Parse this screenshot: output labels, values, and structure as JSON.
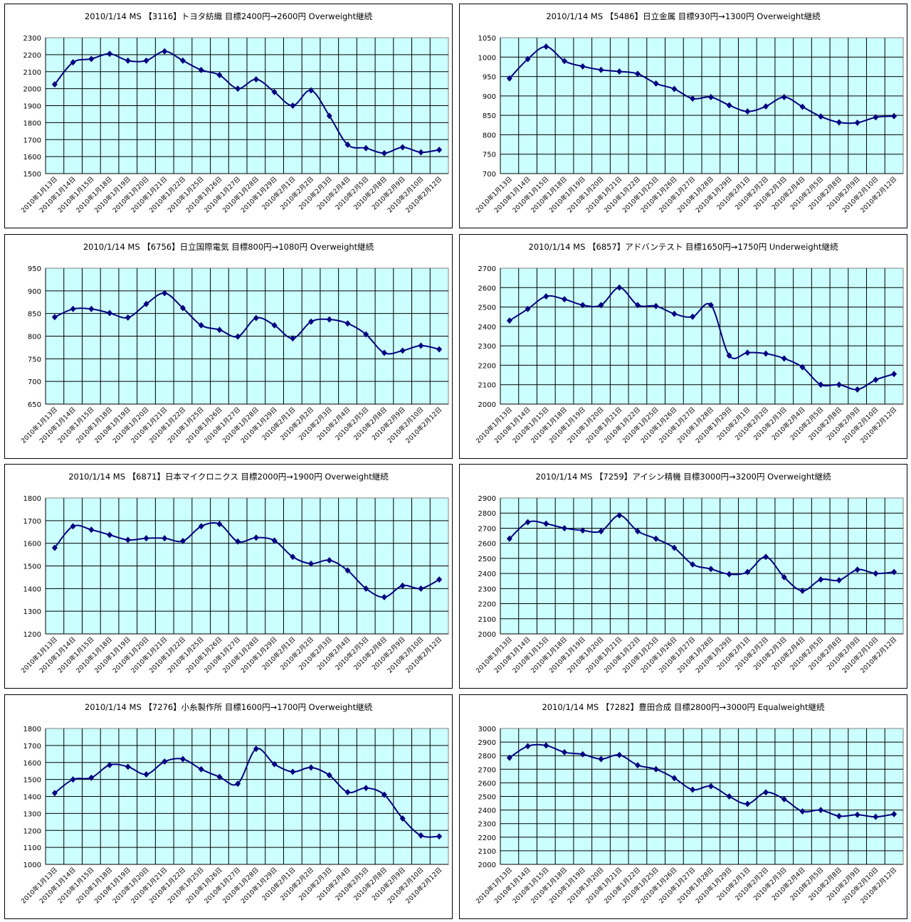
{
  "chart_data": [
    {
      "type": "line",
      "title": "2010/1/14 MS 【3116】トヨタ紡織 目標2400円→2600円 Overweight継続",
      "ylim": [
        1500,
        2300
      ],
      "ystep": 100,
      "values": [
        2025,
        2155,
        2175,
        2205,
        2165,
        2165,
        2220,
        2165,
        2110,
        2080,
        2000,
        2055,
        1980,
        1900,
        1990,
        1840,
        1670,
        1650,
        1620,
        1655,
        1625,
        1640
      ]
    },
    {
      "type": "line",
      "title": "2010/1/14 MS 【5486】日立金属 目標930円→1300円 Overweight継続",
      "ylim": [
        700,
        1050
      ],
      "ystep": 50,
      "values": [
        945,
        995,
        1027,
        990,
        976,
        967,
        963,
        957,
        932,
        918,
        893,
        897,
        876,
        860,
        873,
        897,
        872,
        847,
        832,
        831,
        845,
        848
      ]
    },
    {
      "type": "line",
      "title": "2010/1/14 MS 【6756】日立国際電気 目標800円→1080円 Overweight継続",
      "ylim": [
        650,
        950
      ],
      "ystep": 50,
      "values": [
        842,
        860,
        860,
        851,
        841,
        871,
        895,
        862,
        824,
        814,
        799,
        840,
        824,
        795,
        832,
        837,
        828,
        804,
        763,
        768,
        779,
        771
      ]
    },
    {
      "type": "line",
      "title": "2010/1/14 MS 【6857】アドバンテスト 目標1650円→1750円 Underweight継続",
      "ylim": [
        2000,
        2700
      ],
      "ystep": 100,
      "values": [
        2430,
        2490,
        2555,
        2540,
        2510,
        2510,
        2600,
        2510,
        2505,
        2465,
        2450,
        2510,
        2250,
        2265,
        2260,
        2235,
        2190,
        2100,
        2100,
        2075,
        2125,
        2155
      ]
    },
    {
      "type": "line",
      "title": "2010/1/14 MS 【6871】日本マイクロニクス 目標2000円→1900円 Overweight継続",
      "ylim": [
        1200,
        1800
      ],
      "ystep": 100,
      "values": [
        1580,
        1675,
        1660,
        1637,
        1615,
        1622,
        1622,
        1610,
        1675,
        1685,
        1608,
        1625,
        1612,
        1540,
        1510,
        1525,
        1480,
        1400,
        1362,
        1413,
        1400,
        1440
      ]
    },
    {
      "type": "line",
      "title": "2010/1/14 MS 【7259】アイシン精機 目標3000円→3200円 Overweight継続",
      "ylim": [
        2000,
        2900
      ],
      "ystep": 100,
      "values": [
        2630,
        2740,
        2730,
        2700,
        2685,
        2680,
        2785,
        2680,
        2630,
        2570,
        2460,
        2430,
        2395,
        2410,
        2510,
        2375,
        2285,
        2360,
        2355,
        2425,
        2400,
        2410
      ]
    },
    {
      "type": "line",
      "title": "2010/1/14 MS 【7276】小糸製作所 目標1600円→1700円 Overweight継続",
      "ylim": [
        1000,
        1800
      ],
      "ystep": 100,
      "values": [
        1420,
        1500,
        1510,
        1585,
        1575,
        1530,
        1605,
        1620,
        1560,
        1515,
        1475,
        1680,
        1590,
        1545,
        1570,
        1525,
        1425,
        1450,
        1410,
        1270,
        1170,
        1165
      ]
    },
    {
      "type": "line",
      "title": "2010/1/14 MS 【7282】豊田合成 目標2800円→3000円 Equalweight継続",
      "ylim": [
        2000,
        3000
      ],
      "ystep": 100,
      "values": [
        2785,
        2870,
        2875,
        2825,
        2810,
        2775,
        2805,
        2730,
        2700,
        2635,
        2550,
        2575,
        2500,
        2445,
        2530,
        2480,
        2390,
        2400,
        2355,
        2365,
        2350,
        2370
      ]
    }
  ],
  "categories": [
    "2010年1月13日",
    "2010年1月14日",
    "2010年1月15日",
    "2010年1月18日",
    "2010年1月19日",
    "2010年1月20日",
    "2010年1月21日",
    "2010年1月22日",
    "2010年1月25日",
    "2010年1月26日",
    "2010年1月27日",
    "2010年1月28日",
    "2010年1月29日",
    "2010年2月1日",
    "2010年2月2日",
    "2010年2月3日",
    "2010年2月4日",
    "2010年2月5日",
    "2010年2月8日",
    "2010年2月9日",
    "2010年2月10日",
    "2010年2月12日"
  ],
  "colors": {
    "plot_bg": "#ccffff",
    "line": "#000080",
    "grid": "#000000"
  }
}
